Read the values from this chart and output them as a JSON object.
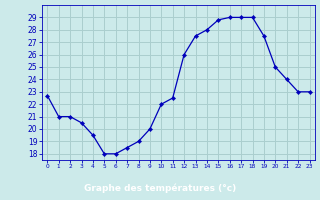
{
  "hours": [
    0,
    1,
    2,
    3,
    4,
    5,
    6,
    7,
    8,
    9,
    10,
    11,
    12,
    13,
    14,
    15,
    16,
    17,
    18,
    19,
    20,
    21,
    22,
    23
  ],
  "temps": [
    22.7,
    21.0,
    21.0,
    20.5,
    19.5,
    18.0,
    18.0,
    18.5,
    19.0,
    20.0,
    22.0,
    22.5,
    26.0,
    27.5,
    28.0,
    28.8,
    29.0,
    29.0,
    29.0,
    27.5,
    25.0,
    24.0,
    23.0,
    23.0
  ],
  "xlabel": "Graphe des températures (°c)",
  "bg_color": "#cceaea",
  "grid_color": "#aacece",
  "line_color": "#0000bb",
  "ylim": [
    17.5,
    30
  ],
  "yticks": [
    18,
    19,
    20,
    21,
    22,
    23,
    24,
    25,
    26,
    27,
    28,
    29
  ],
  "xtick_positions": [
    0,
    1,
    2,
    3,
    4,
    5,
    6,
    7,
    8,
    9,
    10,
    11,
    12,
    13,
    14,
    15,
    16,
    17,
    18,
    19,
    20,
    21,
    22,
    23
  ],
  "xtick_labels": [
    "0",
    "1",
    "2",
    "3",
    "4",
    "5",
    "6",
    "7",
    "8",
    "9",
    "10",
    "11",
    "12",
    "13",
    "14",
    "15",
    "16",
    "17",
    "18",
    "19",
    "20",
    "21",
    "22",
    "23"
  ],
  "bottom_bar_color": "#2222aa",
  "bottom_text_color": "#ffffff"
}
